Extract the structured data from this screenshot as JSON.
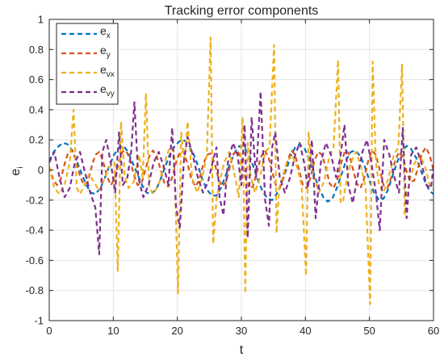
{
  "chart_data": {
    "type": "line",
    "title": "Tracking error components",
    "xlabel": "t",
    "ylabel": "e",
    "ylabel_sub": "i",
    "xlim": [
      0,
      60
    ],
    "ylim": [
      -1,
      1
    ],
    "xticks": [
      0,
      10,
      20,
      30,
      40,
      50,
      60
    ],
    "yticks": [
      -1,
      -0.8,
      -0.6,
      -0.4,
      -0.2,
      0,
      0.2,
      0.4,
      0.6,
      0.8,
      1
    ],
    "grid": true,
    "legend_position": "top-left",
    "series": [
      {
        "name": "e",
        "sub": "x",
        "color": "#0072BD",
        "x": [
          0,
          0.7,
          1.5,
          2.2,
          2.9,
          3.6,
          4.3,
          5,
          5.8,
          6.5,
          7.2,
          8,
          8.7,
          9.4,
          10.1,
          10.9,
          11.6,
          12.3,
          13,
          13.8,
          14.5,
          15.2,
          15.9,
          16.7,
          17.4,
          18.1,
          18.8,
          19.6,
          20.3,
          21,
          21.7,
          22.5,
          23.2,
          23.9,
          24.6,
          25.4,
          26.1,
          26.8,
          27.5,
          28.3,
          29,
          29.7,
          30.4,
          31.2,
          31.9,
          32.6,
          33.3,
          34.1,
          34.8,
          35.5,
          36.2,
          37,
          37.7,
          38.4,
          39.1,
          39.9,
          40.6,
          41.3,
          42,
          42.8,
          43.5,
          44.2,
          44.9,
          45.7,
          46.4,
          47.1,
          47.8,
          48.6,
          49.3,
          50,
          50.7,
          51.5,
          52.2,
          52.9,
          53.6,
          54.4,
          55.1,
          55.8,
          56.5,
          57.3,
          58,
          58.7,
          59.4,
          60
        ],
        "y": [
          0.06,
          0.12,
          0.16,
          0.18,
          0.17,
          0.13,
          0.06,
          -0.02,
          -0.1,
          -0.15,
          -0.16,
          -0.12,
          -0.05,
          0.03,
          0.1,
          0.15,
          0.16,
          0.12,
          0.05,
          -0.03,
          -0.1,
          -0.15,
          -0.16,
          -0.13,
          -0.06,
          0.02,
          0.1,
          0.16,
          0.19,
          0.2,
          0.17,
          0.11,
          0.03,
          -0.06,
          -0.13,
          -0.17,
          -0.17,
          -0.12,
          -0.04,
          0.05,
          0.12,
          0.16,
          0.15,
          0.1,
          0.02,
          -0.07,
          -0.14,
          -0.19,
          -0.2,
          -0.16,
          -0.09,
          0,
          0.09,
          0.15,
          0.17,
          0.14,
          0.07,
          -0.02,
          -0.11,
          -0.18,
          -0.21,
          -0.19,
          -0.12,
          -0.02,
          0.07,
          0.12,
          0.13,
          0.09,
          0.02,
          -0.07,
          -0.15,
          -0.2,
          -0.19,
          -0.13,
          -0.04,
          0.06,
          0.13,
          0.16,
          0.14,
          0.08,
          0,
          -0.08,
          -0.14,
          -0.16
        ]
      },
      {
        "name": "e",
        "sub": "y",
        "color": "#D95319",
        "x": [
          0,
          0.6,
          1.2,
          1.8,
          2.4,
          3,
          3.6,
          4.2,
          4.8,
          5.4,
          6,
          6.6,
          7.2,
          7.8,
          8.4,
          9,
          9.6,
          10.2,
          10.8,
          11.4,
          12,
          12.6,
          13.2,
          13.8,
          14.4,
          15,
          15.6,
          16.2,
          16.8,
          17.4,
          18,
          18.6,
          19.2,
          19.8,
          20.4,
          21,
          21.6,
          22.2,
          22.8,
          23.4,
          24,
          24.6,
          25.2,
          25.8,
          26.4,
          27,
          27.6,
          28.2,
          28.8,
          29.4,
          30,
          30.6,
          31.2,
          31.8,
          32.4,
          33,
          33.6,
          34.2,
          34.8,
          35.4,
          36,
          36.6,
          37.2,
          37.8,
          38.4,
          39,
          39.6,
          40.2,
          40.8,
          41.4,
          42,
          42.6,
          43.2,
          43.8,
          44.4,
          45,
          45.6,
          46.2,
          46.8,
          47.4,
          48,
          48.6,
          49.2,
          49.8,
          50.4,
          51,
          51.6,
          52.2,
          52.8,
          53.4,
          54,
          54.6,
          55.2,
          55.8,
          56.4,
          57,
          57.6,
          58.2,
          58.8,
          59.4,
          60
        ],
        "y": [
          0.02,
          -0.06,
          -0.1,
          -0.06,
          0.04,
          0.12,
          0.13,
          0.06,
          -0.04,
          -0.1,
          -0.08,
          0.02,
          0.1,
          0.12,
          0.06,
          -0.04,
          -0.1,
          -0.06,
          0.04,
          0.12,
          0.13,
          0.07,
          -0.03,
          -0.1,
          -0.09,
          0,
          0.09,
          0.13,
          0.09,
          0,
          -0.09,
          -0.11,
          -0.05,
          0.05,
          0.12,
          0.12,
          0.04,
          -0.06,
          -0.11,
          -0.07,
          0.03,
          0.1,
          0.11,
          0.05,
          -0.05,
          -0.11,
          -0.08,
          0.02,
          0.11,
          0.13,
          0.07,
          -0.04,
          -0.12,
          -0.11,
          -0.02,
          0.08,
          0.13,
          0.09,
          -0.01,
          -0.1,
          -0.12,
          -0.05,
          0.06,
          0.13,
          0.1,
          0,
          -0.1,
          -0.12,
          -0.05,
          0.06,
          0.12,
          0.1,
          0.01,
          -0.09,
          -0.12,
          -0.06,
          0.05,
          0.13,
          0.11,
          0.01,
          -0.09,
          -0.12,
          -0.05,
          0.06,
          0.13,
          0.1,
          0,
          -0.1,
          -0.12,
          -0.05,
          0.06,
          0.12,
          0.09,
          -0.01,
          -0.08,
          -0.07,
          0.02,
          0.11,
          0.15,
          0.1,
          0
        ]
      },
      {
        "name": "e",
        "sub": "vx",
        "color": "#EDB120",
        "x": [
          0,
          0.8,
          1.6,
          2.4,
          3.2,
          3.8,
          4.3,
          4.8,
          5.5,
          6.2,
          7,
          7.8,
          8.6,
          9.4,
          10.2,
          10.7,
          11.2,
          11.8,
          12.4,
          13.2,
          14,
          14.6,
          15.1,
          15.6,
          16.3,
          17.2,
          18,
          18.8,
          19.5,
          20.1,
          20.6,
          21.1,
          21.6,
          22.3,
          23.1,
          23.9,
          24.6,
          25.2,
          25.6,
          26.1,
          26.6,
          27.3,
          28.1,
          28.9,
          29.6,
          30.2,
          30.6,
          31,
          31.4,
          32.1,
          32.9,
          33.7,
          34.4,
          35.1,
          35.5,
          35.9,
          36.4,
          37.1,
          37.9,
          38.7,
          39.4,
          40.1,
          40.5,
          40.9,
          41.4,
          42.1,
          42.9,
          43.7,
          44.4,
          45.1,
          45.5,
          45.9,
          46.4,
          47.1,
          47.9,
          48.7,
          49.4,
          50.1,
          50.5,
          51,
          51.5,
          52.2,
          53,
          53.8,
          54.5,
          55.1,
          55.5,
          55.9,
          56.4,
          57.1,
          57.9,
          58.7,
          59.4,
          60
        ],
        "y": [
          0.02,
          -0.12,
          -0.16,
          -0.1,
          0.05,
          0.4,
          -0.12,
          -0.16,
          -0.1,
          -0.03,
          -0.08,
          -0.14,
          -0.06,
          0.02,
          0.05,
          -0.67,
          0.32,
          -0.05,
          -0.12,
          -0.08,
          0.1,
          -0.05,
          0.51,
          -0.12,
          -0.16,
          -0.08,
          0.05,
          0.15,
          0.12,
          -0.82,
          0.25,
          0.05,
          0.32,
          -0.05,
          -0.15,
          -0.05,
          0.1,
          0.88,
          -0.49,
          -0.2,
          -0.08,
          0.05,
          0.12,
          -0.02,
          -0.18,
          0.35,
          -0.82,
          0.18,
          -0.03,
          -0.15,
          -0.05,
          0.12,
          0.15,
          0.83,
          -0.42,
          -0.12,
          -0.05,
          0.05,
          0.1,
          0.02,
          -0.1,
          -0.7,
          0.25,
          0.05,
          -0.05,
          -0.15,
          -0.08,
          0.08,
          0.15,
          0.73,
          -0.22,
          -0.2,
          -0.08,
          0.05,
          0.12,
          0.02,
          -0.12,
          -0.89,
          0.72,
          0.05,
          -0.1,
          -0.15,
          -0.05,
          0.1,
          0.15,
          0.7,
          -0.3,
          -0.15,
          -0.05,
          0.05,
          0.1,
          0.02,
          -0.1,
          -0.13
        ]
      },
      {
        "name": "e",
        "sub": "vy",
        "color": "#7E2F8E",
        "x": [
          0,
          0.8,
          1.6,
          2.4,
          3.2,
          4,
          4.8,
          5.6,
          6.4,
          7.2,
          7.8,
          8.3,
          8.9,
          9.6,
          10.3,
          10.9,
          11.5,
          12.2,
          12.8,
          13.3,
          13.9,
          14.7,
          15.5,
          16.3,
          17.1,
          17.9,
          18.6,
          19.2,
          19.8,
          20.4,
          21,
          21.6,
          22.4,
          23.2,
          24,
          24.8,
          25.5,
          26.1,
          26.6,
          27.2,
          27.9,
          28.7,
          29.4,
          30,
          30.5,
          31,
          31.6,
          32.3,
          33,
          33.7,
          34.3,
          34.8,
          35.3,
          36,
          36.8,
          37.6,
          38.4,
          39.1,
          39.8,
          40.4,
          41,
          41.6,
          42.4,
          43.2,
          44,
          44.8,
          45.5,
          46.1,
          46.7,
          47.4,
          48.1,
          48.9,
          49.6,
          50.3,
          51,
          51.6,
          52.3,
          53.1,
          53.9,
          54.6,
          55.2,
          55.8,
          56.5,
          57.3,
          58.1,
          58.9,
          59.6,
          60
        ],
        "y": [
          0.05,
          0.12,
          -0.05,
          -0.18,
          -0.12,
          0.05,
          0.12,
          -0.02,
          -0.15,
          -0.25,
          -0.56,
          0.12,
          0.2,
          0.05,
          -0.15,
          0.25,
          -0.1,
          -0.05,
          0.12,
          0.45,
          -0.05,
          -0.18,
          -0.1,
          0.05,
          0.12,
          0.02,
          -0.1,
          0.28,
          -0.25,
          -0.38,
          0.05,
          0.22,
          0.1,
          -0.05,
          -0.15,
          -0.08,
          0.05,
          0.15,
          -0.18,
          -0.3,
          0.05,
          0.18,
          0.1,
          -0.1,
          0.3,
          -0.45,
          0.35,
          -0.05,
          0.52,
          -0.2,
          -0.37,
          0.15,
          0.25,
          -0.05,
          -0.15,
          -0.05,
          0.1,
          0.18,
          0.05,
          -0.12,
          0.2,
          -0.32,
          0.05,
          0.18,
          0.1,
          -0.05,
          0.1,
          0.3,
          -0.1,
          -0.22,
          -0.05,
          0.12,
          0.2,
          0.05,
          -0.15,
          -0.4,
          0.2,
          0.1,
          -0.05,
          -0.15,
          0.28,
          -0.32,
          0.1,
          0.15,
          0.05,
          -0.1,
          -0.12,
          0.02
        ]
      }
    ]
  }
}
